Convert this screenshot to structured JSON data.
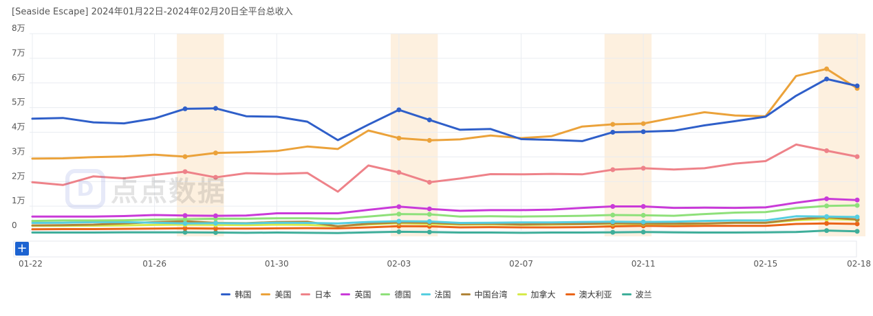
{
  "title": "[Seaside Escape]  2024年01月22日-2024年02月20日全平台总收入",
  "watermark": {
    "logo_letter": "D",
    "text": "点点数据"
  },
  "controls": {
    "add_label": "+"
  },
  "chart_data": {
    "type": "line",
    "title": "[Seaside Escape]  2024年01月22日-2024年02月20日全平台总收入",
    "x": [
      "01-22",
      "01-23",
      "01-24",
      "01-25",
      "01-26",
      "01-27",
      "01-28",
      "01-29",
      "01-30",
      "01-31",
      "02-01",
      "02-02",
      "02-03",
      "02-04",
      "02-05",
      "02-06",
      "02-07",
      "02-08",
      "02-09",
      "02-10",
      "02-11",
      "02-12",
      "02-13",
      "02-14",
      "02-15",
      "02-16",
      "02-17",
      "02-18"
    ],
    "x_tick_labels": [
      "01-22",
      "01-26",
      "01-30",
      "02-03",
      "02-07",
      "02-11",
      "02-15",
      "02-18"
    ],
    "y_tick_labels": [
      "0",
      "1万",
      "2万",
      "3万",
      "4万",
      "5万",
      "6万",
      "7万",
      "8万"
    ],
    "ylim": [
      0,
      80000
    ],
    "grid": true,
    "legend_position": "bottom",
    "highlight_bands": [
      [
        "01-27",
        "01-28"
      ],
      [
        "02-03",
        "02-04"
      ],
      [
        "02-10",
        "02-11"
      ],
      [
        "02-17",
        "02-18"
      ]
    ],
    "highlight_color": "#fdf0df",
    "marker_points": [
      "01-27",
      "01-28",
      "02-03",
      "02-04",
      "02-10",
      "02-11",
      "02-17",
      "02-18"
    ],
    "series": [
      {
        "name": "韩国",
        "color": "#2f5fc9",
        "values": [
          45500,
          45800,
          44000,
          43600,
          45600,
          49500,
          49700,
          46500,
          46300,
          44300,
          36800,
          43100,
          49100,
          45000,
          41000,
          41300,
          37200,
          36900,
          36400,
          40000,
          40200,
          40600,
          42800,
          44500,
          46300,
          54800,
          61600,
          58800
        ]
      },
      {
        "name": "美国",
        "color": "#eba23a",
        "values": [
          29300,
          29400,
          29900,
          30200,
          30900,
          30100,
          31600,
          31900,
          32400,
          34200,
          33200,
          40700,
          37600,
          36700,
          37100,
          38700,
          37600,
          38400,
          42300,
          43200,
          43500,
          45900,
          48100,
          46800,
          46500,
          62800,
          65700,
          57800
        ]
      },
      {
        "name": "日本",
        "color": "#ee8289",
        "values": [
          19700,
          18600,
          22100,
          21300,
          22700,
          24000,
          21700,
          23400,
          23100,
          23500,
          15900,
          26500,
          23700,
          19700,
          21200,
          23000,
          22900,
          23100,
          22900,
          24800,
          25400,
          24900,
          25400,
          27300,
          28300,
          35000,
          32500,
          30100
        ]
      },
      {
        "name": "英国",
        "color": "#c93ad8",
        "values": [
          5800,
          5800,
          5800,
          6000,
          6400,
          6200,
          6100,
          6200,
          7100,
          7100,
          7100,
          8500,
          9800,
          8900,
          8100,
          8400,
          8400,
          8600,
          9300,
          9900,
          9900,
          9300,
          9400,
          9300,
          9500,
          11400,
          13000,
          12500
        ]
      },
      {
        "name": "德国",
        "color": "#8ee07a",
        "values": [
          4000,
          4200,
          4200,
          4300,
          4600,
          4700,
          4900,
          4900,
          5100,
          5100,
          4800,
          5800,
          6800,
          6700,
          5800,
          5900,
          5800,
          5900,
          6100,
          6400,
          6300,
          6100,
          6800,
          7400,
          7600,
          9200,
          10100,
          10300
        ]
      },
      {
        "name": "法国",
        "color": "#56cee0",
        "values": [
          3200,
          3300,
          3500,
          3500,
          3300,
          3000,
          3100,
          3000,
          3300,
          3200,
          3000,
          3600,
          3900,
          3800,
          3200,
          3300,
          3400,
          3400,
          3600,
          3700,
          3600,
          3700,
          4000,
          4200,
          4200,
          5900,
          5800,
          5600
        ]
      },
      {
        "name": "中国台湾",
        "color": "#b08438",
        "values": [
          2200,
          2300,
          2500,
          3000,
          3500,
          3900,
          3200,
          3100,
          3600,
          3700,
          1800,
          2900,
          3400,
          3300,
          2800,
          2900,
          2600,
          2800,
          2800,
          3100,
          3000,
          2900,
          3000,
          3300,
          3300,
          4700,
          5500,
          4600
        ]
      },
      {
        "name": "加拿大",
        "color": "#d6ea4a",
        "values": [
          2000,
          2000,
          2100,
          2200,
          2400,
          2500,
          2400,
          2300,
          2500,
          2400,
          1900,
          2600,
          3100,
          2800,
          2500,
          2600,
          2400,
          2500,
          2700,
          2800,
          2800,
          2700,
          2900,
          3200,
          3200,
          4300,
          4800,
          4500
        ]
      },
      {
        "name": "澳大利亚",
        "color": "#ea6418",
        "values": [
          600,
          700,
          700,
          800,
          900,
          1000,
          900,
          900,
          1000,
          1100,
          1000,
          1400,
          1900,
          1800,
          1400,
          1500,
          1400,
          1400,
          1500,
          1800,
          2000,
          1900,
          2000,
          2000,
          2000,
          2800,
          3000,
          2800
        ]
      },
      {
        "name": "波兰",
        "color": "#3fae9a",
        "values": [
          -700,
          -700,
          -700,
          -600,
          -600,
          -600,
          -700,
          -800,
          -700,
          -800,
          -900,
          -600,
          -400,
          -500,
          -700,
          -700,
          -800,
          -700,
          -700,
          -600,
          -500,
          -600,
          -700,
          -700,
          -600,
          -500,
          100,
          -200
        ]
      }
    ]
  }
}
